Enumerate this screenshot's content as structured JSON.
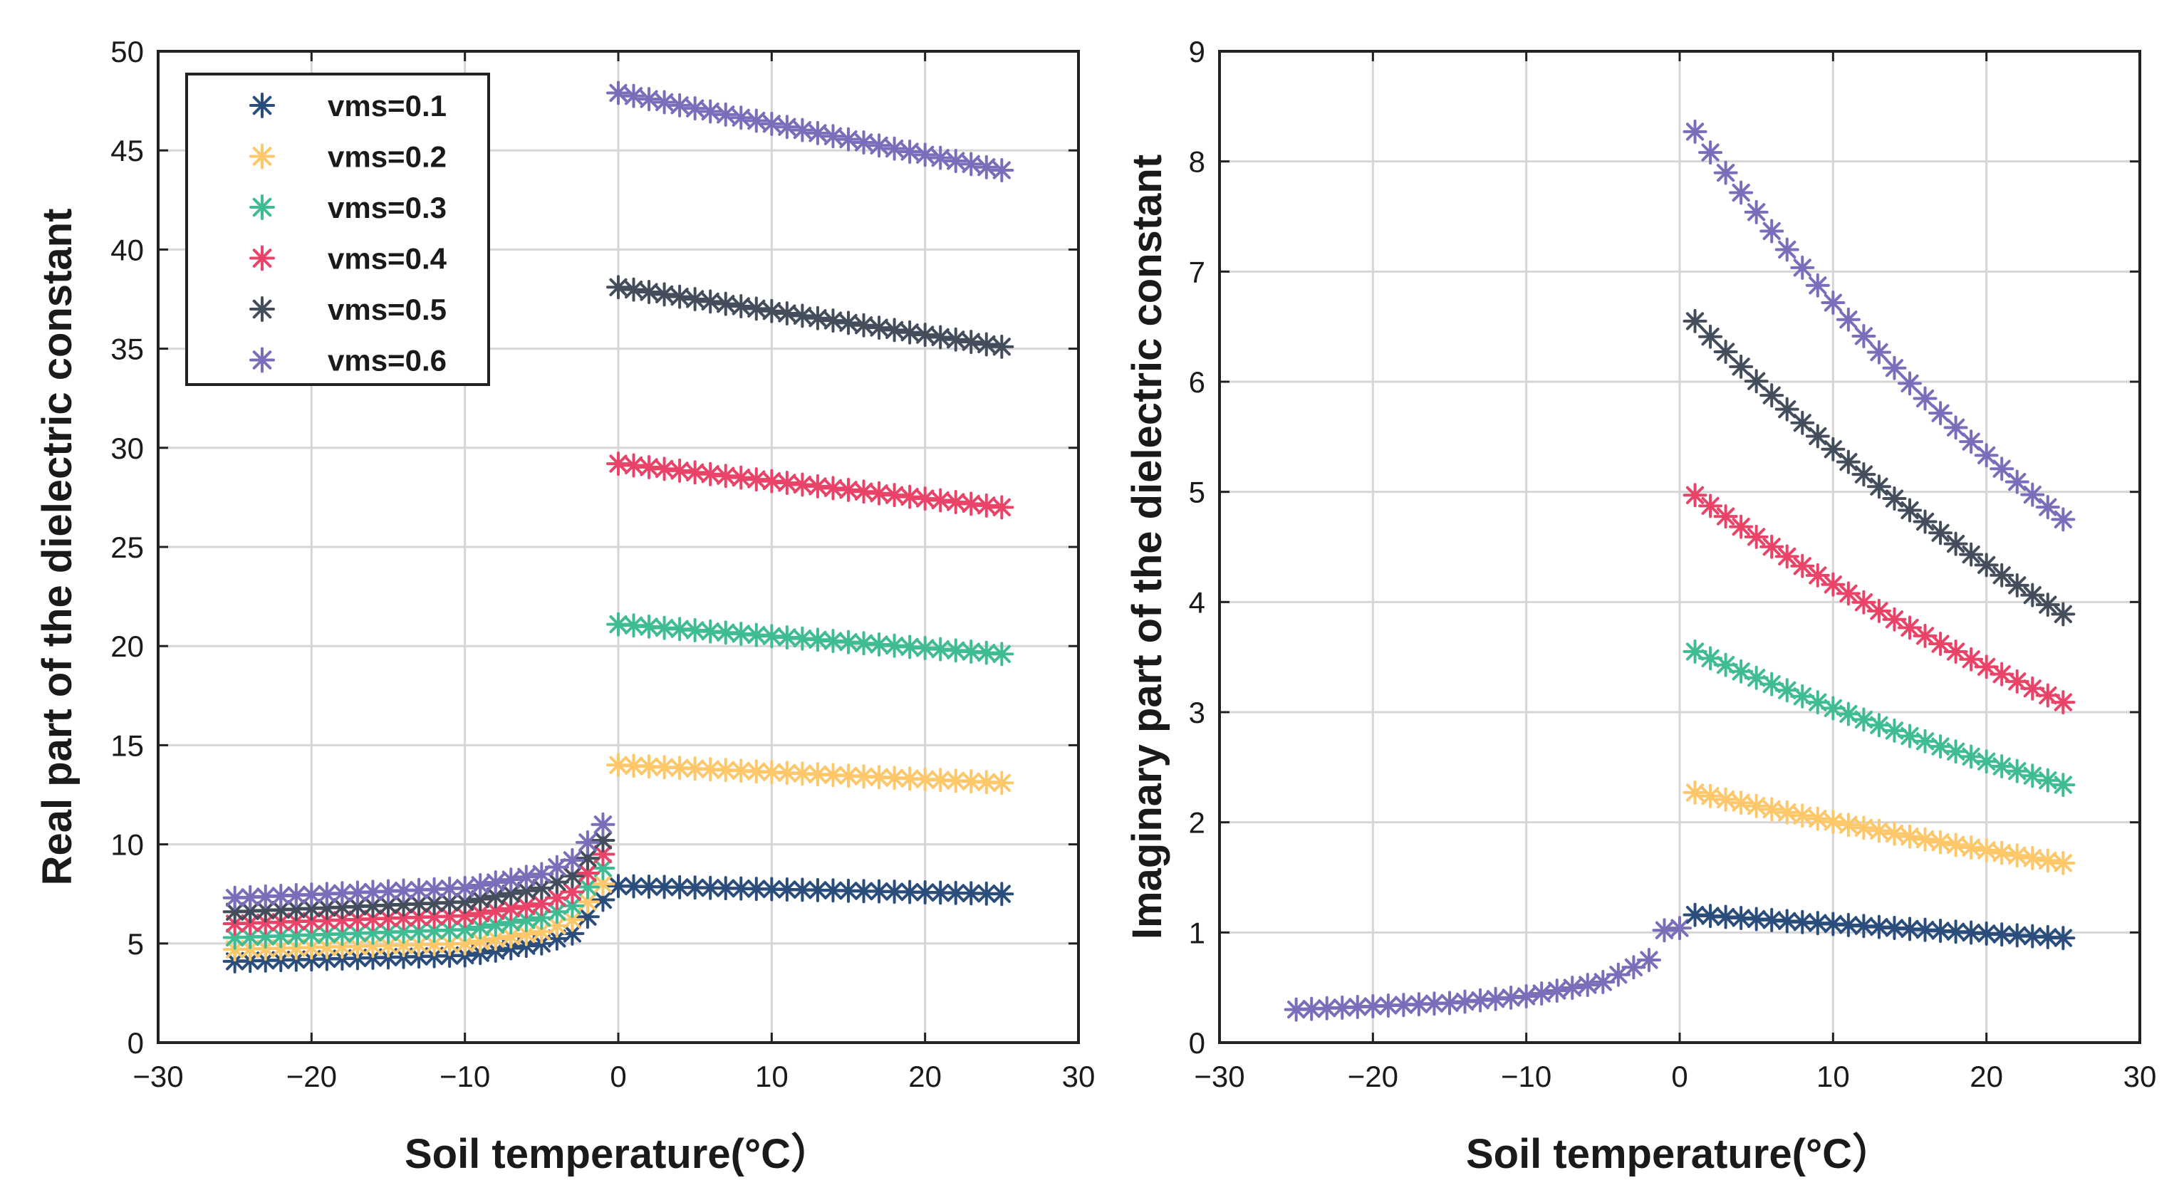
{
  "colors": {
    "vms_0_1": "#2a4d7c",
    "vms_0_2": "#fdc76a",
    "vms_0_3": "#3fbc94",
    "vms_0_4": "#ea4368",
    "vms_0_5": "#444d5b",
    "vms_0_6": "#7a6db9"
  },
  "chart_data": [
    {
      "type": "scatter",
      "xlabel": "Soil temperature(°C）",
      "ylabel": "Real part of the dielectric constant",
      "xlim": [
        -30,
        30
      ],
      "ylim": [
        0,
        50
      ],
      "xticks": [
        "−30",
        "−20",
        "−10",
        "0",
        "10",
        "20",
        "30"
      ],
      "yticks": [
        "0",
        "5",
        "10",
        "15",
        "20",
        "25",
        "30",
        "35",
        "40",
        "45",
        "50"
      ],
      "grid": true,
      "marker": "asterisk",
      "legend": {
        "position": "top-left"
      },
      "series": [
        {
          "name": "vms=0.1",
          "frozen": {
            "at_-25": 4.1,
            "at_-10": 4.4,
            "at_-5": 5.0,
            "at_-3": 5.5,
            "at_-1": 7.2
          },
          "thawed": {
            "at_0": 7.9,
            "at_25": 7.5
          }
        },
        {
          "name": "vms=0.2",
          "frozen": {
            "at_-25": 4.7,
            "at_-10": 5.0,
            "at_-5": 5.6,
            "at_-3": 6.2,
            "at_-1": 8.0
          },
          "thawed": {
            "at_0": 14.0,
            "at_25": 13.1
          }
        },
        {
          "name": "vms=0.3",
          "frozen": {
            "at_-25": 5.3,
            "at_-10": 5.7,
            "at_-5": 6.3,
            "at_-3": 6.9,
            "at_-1": 8.8
          },
          "thawed": {
            "at_0": 21.1,
            "at_25": 19.6
          }
        },
        {
          "name": "vms=0.4",
          "frozen": {
            "at_-25": 6.0,
            "at_-10": 6.4,
            "at_-5": 7.0,
            "at_-3": 7.6,
            "at_-1": 9.5
          },
          "thawed": {
            "at_0": 29.2,
            "at_25": 27.0
          }
        },
        {
          "name": "vms=0.5",
          "frozen": {
            "at_-25": 6.6,
            "at_-10": 7.1,
            "at_-5": 7.8,
            "at_-3": 8.4,
            "at_-1": 10.2
          },
          "thawed": {
            "at_0": 38.1,
            "at_25": 35.1
          }
        },
        {
          "name": "vms=0.6",
          "frozen": {
            "at_-25": 7.3,
            "at_-10": 7.8,
            "at_-5": 8.5,
            "at_-3": 9.2,
            "at_-1": 11.0
          },
          "thawed": {
            "at_0": 47.9,
            "at_25": 44.0
          }
        }
      ]
    },
    {
      "type": "scatter",
      "xlabel": "Soil temperature(°C）",
      "ylabel": "Imaginary part of the dielectric constant",
      "xlim": [
        -30,
        30
      ],
      "ylim": [
        0,
        9
      ],
      "xticks": [
        "−30",
        "−20",
        "−10",
        "0",
        "10",
        "20",
        "30"
      ],
      "yticks": [
        "0",
        "1",
        "2",
        "3",
        "4",
        "5",
        "6",
        "7",
        "8",
        "9"
      ],
      "grid": true,
      "marker": "asterisk",
      "frozen_all_series": {
        "at_-25": 0.3,
        "at_-15": 0.36,
        "at_-10": 0.42,
        "at_-5": 0.55,
        "at_-2": 0.75,
        "at_-1": 1.02,
        "at_0": 1.04
      },
      "series": [
        {
          "name": "vms=0.1",
          "thawed": {
            "at_1": 1.16,
            "at_25": 0.95
          }
        },
        {
          "name": "vms=0.2",
          "thawed": {
            "at_1": 2.27,
            "at_25": 1.63
          }
        },
        {
          "name": "vms=0.3",
          "thawed": {
            "at_1": 3.55,
            "at_25": 2.34
          }
        },
        {
          "name": "vms=0.4",
          "thawed": {
            "at_1": 4.97,
            "at_25": 3.09
          }
        },
        {
          "name": "vms=0.5",
          "thawed": {
            "at_1": 6.55,
            "at_25": 3.89
          }
        },
        {
          "name": "vms=0.6",
          "thawed": {
            "at_1": 8.27,
            "at_25": 4.75
          }
        }
      ]
    }
  ]
}
